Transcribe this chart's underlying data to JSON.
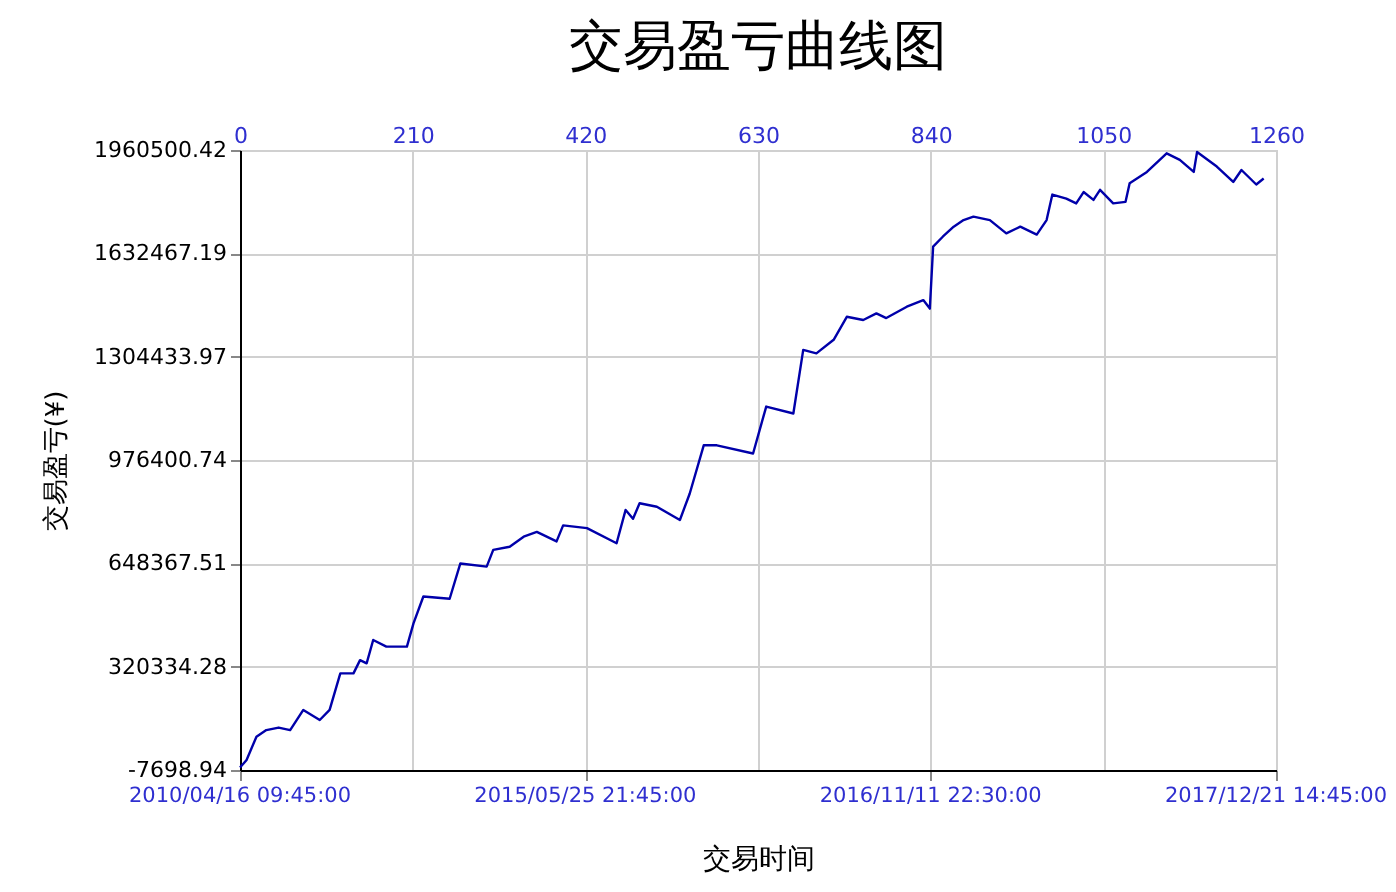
{
  "chart_data": {
    "type": "line",
    "title": "交易盈亏曲线图",
    "xlabel": "交易时间",
    "ylabel": "交易盈亏(¥)",
    "x": [
      0,
      8,
      20,
      32,
      47,
      61,
      77,
      97,
      109,
      122,
      138,
      146,
      154,
      162,
      178,
      203,
      211,
      223,
      255,
      268,
      300,
      308,
      328,
      345,
      361,
      385,
      393,
      422,
      458,
      469,
      478,
      486,
      507,
      535,
      547,
      564,
      580,
      624,
      640,
      673,
      685,
      701,
      722,
      738,
      758,
      774,
      786,
      811,
      831,
      839,
      843,
      855,
      868,
      880,
      892,
      912,
      932,
      949,
      969,
      981,
      988,
      1005,
      1017,
      1026,
      1038,
      1046,
      1062,
      1077,
      1082,
      1103,
      1127,
      1143,
      1160,
      1164,
      1188,
      1208,
      1218,
      1236,
      1245
    ],
    "series": [
      {
        "color": "#0000aa",
        "values": [
          0,
          24000,
          98000,
          119000,
          127000,
          119000,
          183000,
          151000,
          183000,
          299000,
          299000,
          341000,
          331000,
          405000,
          384000,
          384000,
          458000,
          543000,
          536000,
          648000,
          638000,
          691000,
          701000,
          733000,
          748000,
          718000,
          769000,
          760000,
          712000,
          818000,
          790000,
          839000,
          828000,
          786000,
          870000,
          1023000,
          1023000,
          997000,
          1146000,
          1124000,
          1326000,
          1315000,
          1358000,
          1431000,
          1421000,
          1442000,
          1427000,
          1463000,
          1484000,
          1457000,
          1654000,
          1686000,
          1717000,
          1738000,
          1749000,
          1738000,
          1696000,
          1717000,
          1692000,
          1738000,
          1819000,
          1806000,
          1791000,
          1827000,
          1802000,
          1834000,
          1791000,
          1796000,
          1855000,
          1891000,
          1950000,
          1929000,
          1891000,
          1954000,
          1908000,
          1859000,
          1897000,
          1851000,
          1870000
        ]
      }
    ],
    "xlim": [
      0,
      1260
    ],
    "xticks": [
      0,
      210,
      420,
      630,
      840,
      1050,
      1260
    ],
    "annotations": [
      "2010/04/16 09:45:00",
      "2015/05/25 21:45:00",
      "2016/11/11 22:30:00",
      "2017/12/21 14:45:00"
    ],
    "ylim": [
      -7698.94,
      1960500.42
    ],
    "yticks": [
      -7698.94,
      320334.28,
      648367.51,
      976400.74,
      1304433.97,
      1632467.19,
      1960500.42
    ],
    "grid": true
  }
}
